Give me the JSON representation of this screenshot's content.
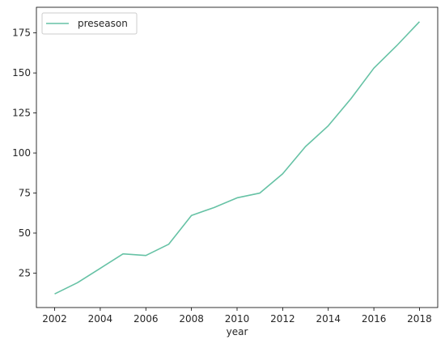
{
  "chart_data": {
    "type": "line",
    "title": "",
    "xlabel": "year",
    "ylabel": "",
    "xlim": [
      2001.2,
      2018.8
    ],
    "ylim": [
      3.5,
      191
    ],
    "xticks": [
      2002,
      2004,
      2006,
      2008,
      2010,
      2012,
      2014,
      2016,
      2018
    ],
    "yticks": [
      25,
      50,
      75,
      100,
      125,
      150,
      175
    ],
    "grid": false,
    "legend_position": "top-left",
    "series": [
      {
        "name": "preseason",
        "color": "#66c2a5",
        "x": [
          2002,
          2003,
          2004,
          2005,
          2006,
          2007,
          2008,
          2009,
          2010,
          2011,
          2012,
          2013,
          2014,
          2015,
          2016,
          2017,
          2018
        ],
        "y": [
          12,
          19,
          28,
          37,
          36,
          43,
          61,
          66,
          72,
          75,
          87,
          104,
          117,
          134,
          153,
          167,
          182
        ]
      }
    ]
  }
}
